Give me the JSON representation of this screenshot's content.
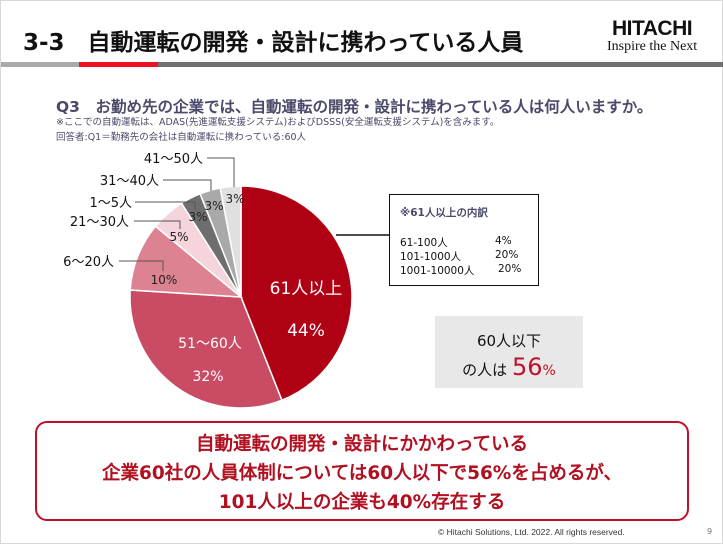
{
  "header": {
    "title": "3-3　自動運転の開発・設計に携わっている人員",
    "logo_name": "HITACHI",
    "logo_tagline": "Inspire the Next"
  },
  "question": {
    "text": "Q3　お勤め先の企業では、自動運転の開発・設計に携わっている人は何人いますか。",
    "note1": "※ここでの自動運転は、ADAS(先進運転支援システム)およびDSSS(安全運転支援システム)を含みます。",
    "note2": "回答者:Q1＝勤務先の会社は自動運転に携わっている:60人"
  },
  "chart_data": {
    "type": "pie",
    "start": "12 o'clock, clockwise",
    "slices": [
      {
        "label": "61人以上",
        "value": 44,
        "pct_label": "44%",
        "color": "#b00014"
      },
      {
        "label": "51～60人",
        "value": 32,
        "pct_label": "32%",
        "color": "#c94c64"
      },
      {
        "label": "6～20人",
        "value": 10,
        "pct_label": "10%",
        "color": "#dc8291"
      },
      {
        "label": "21～30人",
        "value": 5,
        "pct_label": "5%",
        "color": "#f5d5db"
      },
      {
        "label": "1～5人",
        "value": 3,
        "pct_label": "3%",
        "color": "#6e6e6e"
      },
      {
        "label": "31～40人",
        "value": 3,
        "pct_label": "3%",
        "color": "#a9a9a9"
      },
      {
        "label": "41～50人",
        "value": 3,
        "pct_label": "3%",
        "color": "#e0e0e0"
      }
    ]
  },
  "breakdown": {
    "title": "※61人以上の内訳",
    "rows": [
      {
        "label": "61-100人",
        "value": "4%"
      },
      {
        "label": "101-1000人",
        "value": "20%"
      },
      {
        "label": "1001-10000人",
        "value": "20%"
      }
    ]
  },
  "summary": {
    "line1": "60人以下",
    "line2_prefix": "の人は",
    "value": "56",
    "unit": "%",
    "accent": "#c0102a"
  },
  "conclusion": {
    "line1": "自動運転の開発・設計にかかわっている",
    "line2": "企業60社の人員体制については60人以下で56%を占めるが、",
    "line3": "101人以上の企業も40%存在する"
  },
  "footer": {
    "copyright": "© Hitachi Solutions, Ltd. 2022. All rights reserved.",
    "page": "9"
  }
}
